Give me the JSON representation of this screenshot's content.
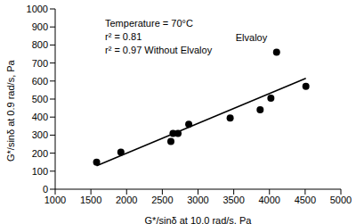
{
  "chart_data": {
    "type": "scatter",
    "x_label": "G*/sinδ at 10.0 rad/s, Pa",
    "y_label": "G*/sinδ at 0.9 rad/s, Pa",
    "annotations": [
      "Temperature = 70°C",
      "r² = 0.81",
      "r² = 0.97 Without Elvaloy"
    ],
    "x": [
      1580,
      1920,
      2620,
      2650,
      2720,
      2870,
      3450,
      3870,
      4020,
      4100,
      4510
    ],
    "values": [
      150,
      205,
      265,
      310,
      310,
      360,
      395,
      440,
      505,
      760,
      570
    ],
    "labels": [
      null,
      null,
      null,
      null,
      null,
      null,
      null,
      null,
      null,
      "Elvaloy",
      null
    ],
    "color": "#000000",
    "marker": "circle",
    "trendline": {
      "x": [
        1580,
        4510
      ],
      "values": [
        130,
        615
      ],
      "color": "#000000",
      "line_style": "solid"
    },
    "xlim": [
      1000,
      5000
    ],
    "xticks": [
      1000,
      1500,
      2000,
      2500,
      3000,
      3500,
      4000,
      4500,
      5000
    ],
    "ylim": [
      0,
      1000
    ],
    "yticks": [
      0,
      100,
      200,
      300,
      400,
      500,
      600,
      700,
      800,
      900,
      1000
    ],
    "grid": false
  }
}
